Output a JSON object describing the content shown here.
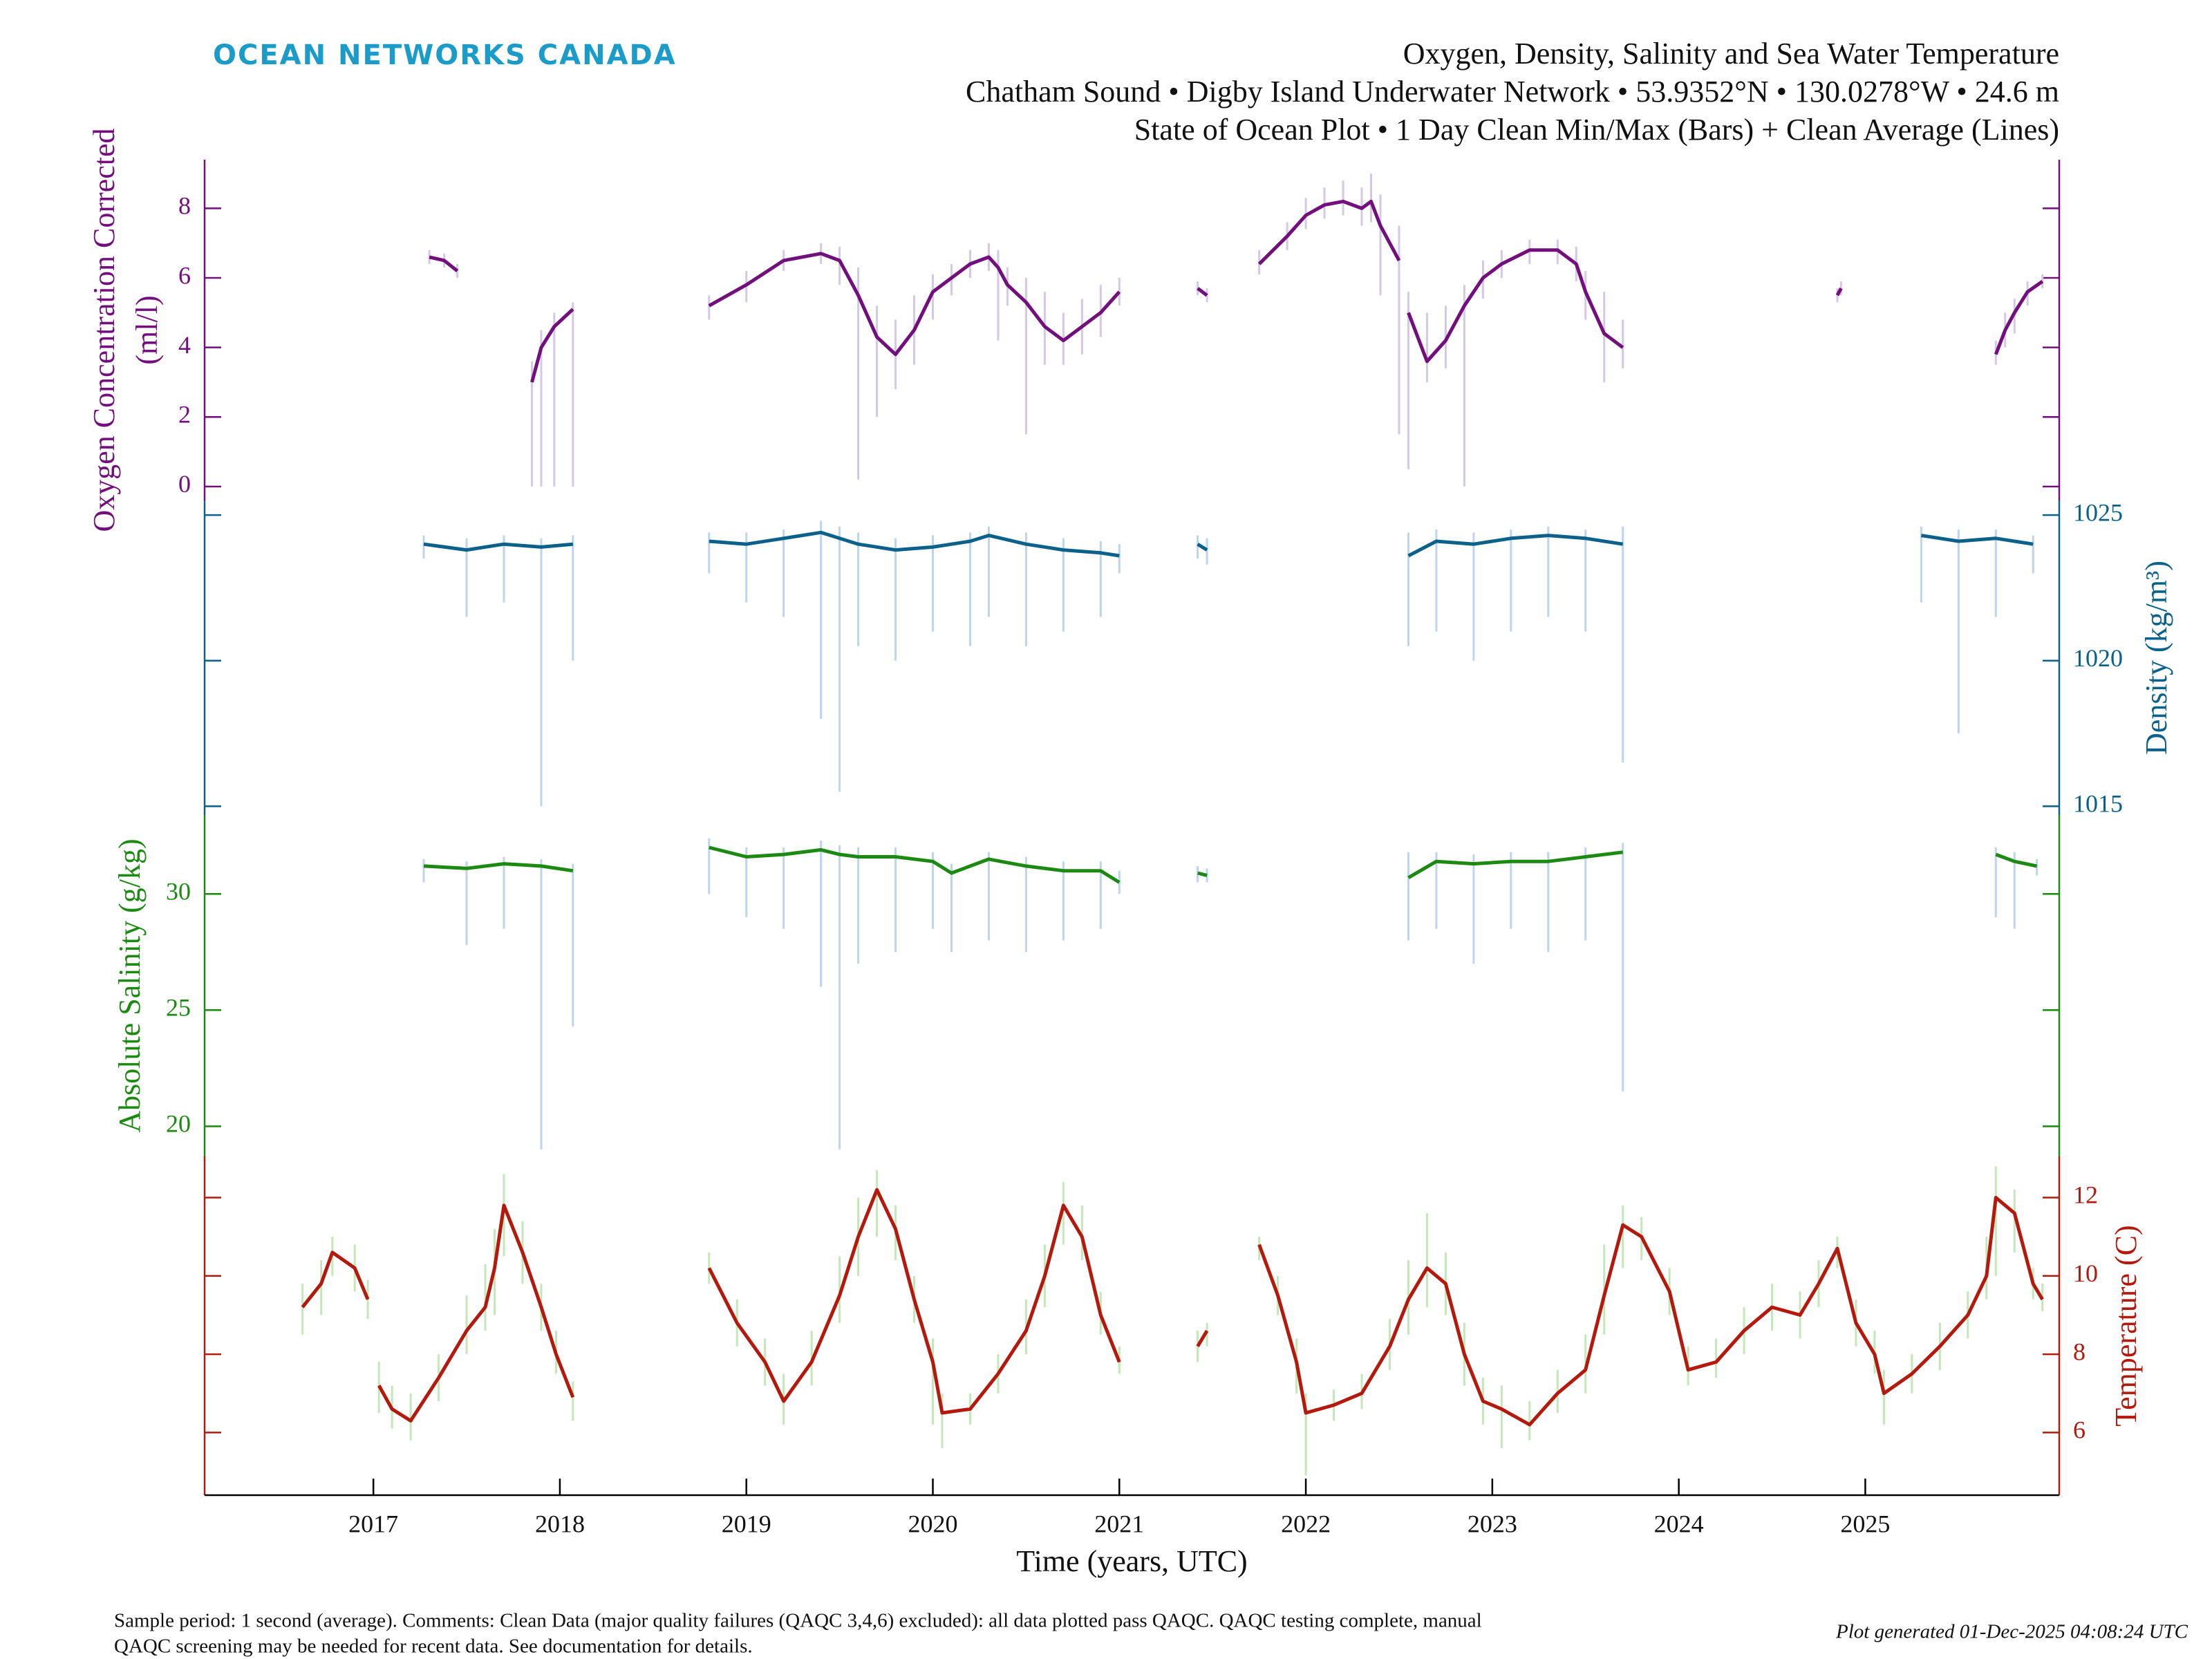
{
  "header": {
    "logo": "OCEAN NETWORKS CANADA",
    "title": "Oxygen, Density, Salinity and Sea Water Temperature",
    "subtitle": [
      "Chatham Sound • Digby Island Underwater Network • 53.9352°N • 130.0278°W • 24.6 m",
      "State of Ocean Plot • 1 Day Clean Min/Max (Bars) + Clean Average (Lines)"
    ]
  },
  "footer": {
    "note": [
      "Sample period: 1 second (average). Comments: Clean Data (major quality failures (QAQC 3,4,6) excluded): all data plotted pass QAQC. QAQC testing complete, manual",
      "QAQC screening may be needed for recent data. See documentation for details."
    ],
    "generated": "Plot generated 01-Dec-2025 04:08:24 UTC"
  },
  "chart_data": [
    {
      "type": "line",
      "ylabel": [
        "Oxygen Concentration Corrected",
        "(ml/l)"
      ],
      "axis_side": "left",
      "color": "#720f7c",
      "bar_color": "#d4c8e6",
      "xlim": [
        2016.095,
        2026.04
      ],
      "ylim": [
        -0.4,
        9.4
      ],
      "yticks": [
        0,
        2,
        4,
        6,
        8
      ],
      "x": [
        2017.3,
        2017.38,
        2017.45,
        null,
        2017.85,
        2017.9,
        2017.97,
        2018.07,
        null,
        2018.8,
        2019.0,
        2019.2,
        2019.4,
        2019.5,
        2019.6,
        2019.7,
        2019.8,
        2019.9,
        2020.0,
        2020.1,
        2020.2,
        2020.3,
        2020.35,
        2020.4,
        2020.5,
        2020.6,
        2020.7,
        2020.8,
        2020.9,
        2021.0,
        null,
        2021.42,
        2021.47,
        null,
        2021.75,
        2021.9,
        2022.0,
        2022.1,
        2022.2,
        2022.3,
        2022.35,
        2022.4,
        2022.5,
        null,
        2022.55,
        2022.65,
        2022.75,
        2022.85,
        2022.95,
        2023.05,
        2023.2,
        2023.35,
        2023.45,
        2023.5,
        2023.6,
        2023.7,
        null,
        2024.85,
        2024.87,
        null,
        2025.7,
        2025.75,
        2025.8,
        2025.87,
        2025.95
      ],
      "values": [
        6.6,
        6.5,
        6.2,
        null,
        3.0,
        4.0,
        4.6,
        5.1,
        null,
        5.2,
        5.8,
        6.5,
        6.7,
        6.5,
        5.5,
        4.3,
        3.8,
        4.5,
        5.6,
        6.0,
        6.4,
        6.6,
        6.3,
        5.8,
        5.3,
        4.6,
        4.2,
        4.6,
        5.0,
        5.6,
        null,
        5.7,
        5.5,
        null,
        6.4,
        7.2,
        7.8,
        8.1,
        8.2,
        8.0,
        8.2,
        7.5,
        6.5,
        null,
        5.0,
        3.6,
        4.2,
        5.2,
        6.0,
        6.4,
        6.8,
        6.8,
        6.4,
        5.6,
        4.4,
        4.0,
        null,
        5.5,
        5.7,
        null,
        3.8,
        4.5,
        5.0,
        5.6,
        5.9
      ],
      "low": [
        6.4,
        6.3,
        6.0,
        null,
        0,
        0,
        0,
        0,
        null,
        4.8,
        5.3,
        6.2,
        6.4,
        5.8,
        0.2,
        2.0,
        2.8,
        3.5,
        4.8,
        5.5,
        6.0,
        6.2,
        4.2,
        5.2,
        1.5,
        3.5,
        3.5,
        3.8,
        4.3,
        5.2,
        null,
        5.5,
        5.3,
        null,
        6.1,
        6.8,
        7.4,
        7.7,
        7.8,
        7.5,
        7.6,
        5.5,
        1.5,
        null,
        0.5,
        3.0,
        3.4,
        0.0,
        5.4,
        6.0,
        6.4,
        6.4,
        5.9,
        4.8,
        3.0,
        3.4,
        null,
        5.3,
        5.5,
        null,
        3.5,
        4.0,
        4.4,
        5.2,
        5.7
      ],
      "high": [
        6.8,
        6.7,
        6.4,
        null,
        3.6,
        4.5,
        5.0,
        5.3,
        null,
        5.5,
        6.2,
        6.8,
        7.0,
        6.9,
        6.3,
        5.2,
        4.8,
        5.5,
        6.1,
        6.4,
        6.8,
        7.0,
        6.8,
        6.3,
        6.0,
        5.6,
        5.0,
        5.4,
        5.8,
        6.0,
        null,
        5.9,
        5.7,
        null,
        6.8,
        7.6,
        8.3,
        8.6,
        8.8,
        8.6,
        9.0,
        8.4,
        7.5,
        null,
        5.6,
        5.0,
        5.2,
        5.8,
        6.5,
        6.8,
        7.1,
        7.1,
        6.9,
        6.2,
        5.6,
        4.8,
        null,
        5.7,
        5.9,
        null,
        4.2,
        5.0,
        5.4,
        5.9,
        6.1
      ]
    },
    {
      "type": "line",
      "ylabel": [
        "Density (kg/m³)"
      ],
      "axis_side": "right",
      "color": "#0b6189",
      "bar_color": "#bcd4ee",
      "xlim": [
        2016.095,
        2026.04
      ],
      "ylim": [
        1014.7,
        1025.5
      ],
      "yticks": [
        1015,
        1020,
        1025
      ],
      "x": [
        2017.27,
        2017.5,
        2017.7,
        2017.9,
        2018.07,
        null,
        2018.8,
        2019.0,
        2019.2,
        2019.4,
        2019.5,
        2019.6,
        2019.8,
        2020.0,
        2020.2,
        2020.3,
        2020.5,
        2020.7,
        2020.9,
        2021.0,
        null,
        2021.42,
        2021.47,
        null,
        2022.55,
        2022.7,
        2022.9,
        2023.1,
        2023.3,
        2023.5,
        2023.7,
        null,
        2025.3,
        2025.5,
        2025.7,
        2025.9
      ],
      "values": [
        1024.0,
        1023.8,
        1024.0,
        1023.9,
        1024.0,
        null,
        1024.1,
        1024.0,
        1024.2,
        1024.4,
        1024.2,
        1024.0,
        1023.8,
        1023.9,
        1024.1,
        1024.3,
        1024.0,
        1023.8,
        1023.7,
        1023.6,
        null,
        1024.0,
        1023.8,
        null,
        1023.6,
        1024.1,
        1024.0,
        1024.2,
        1024.3,
        1024.2,
        1024.0,
        null,
        1024.3,
        1024.1,
        1024.2,
        1024.0
      ],
      "low": [
        1023.5,
        1021.5,
        1022.0,
        1015.0,
        1020.0,
        null,
        1023.0,
        1022.0,
        1021.5,
        1018.0,
        1015.5,
        1020.5,
        1020.0,
        1021.0,
        1020.5,
        1021.5,
        1020.5,
        1021.0,
        1021.5,
        1023.0,
        null,
        1023.5,
        1023.3,
        null,
        1020.5,
        1021.0,
        1020.0,
        1021.0,
        1021.5,
        1021.0,
        1016.5,
        null,
        1022.0,
        1017.5,
        1021.5,
        1023.0
      ],
      "high": [
        1024.3,
        1024.2,
        1024.3,
        1024.2,
        1024.3,
        null,
        1024.4,
        1024.4,
        1024.5,
        1024.8,
        1024.6,
        1024.4,
        1024.2,
        1024.3,
        1024.4,
        1024.6,
        1024.4,
        1024.2,
        1024.1,
        1024.0,
        null,
        1024.3,
        1024.2,
        null,
        1024.4,
        1024.5,
        1024.4,
        1024.5,
        1024.6,
        1024.5,
        1024.6,
        null,
        1024.6,
        1024.5,
        1024.5,
        1024.3
      ]
    },
    {
      "type": "line",
      "ylabel": [
        "Absolute Salinity (g/kg)"
      ],
      "axis_side": "left",
      "color": "#1c8a12",
      "bar_color": "#bcd4ee",
      "xlim": [
        2016.095,
        2026.04
      ],
      "ylim": [
        18.7,
        33.4
      ],
      "yticks": [
        20,
        25,
        30
      ],
      "x": [
        2017.27,
        2017.5,
        2017.7,
        2017.9,
        2018.07,
        null,
        2018.8,
        2019.0,
        2019.2,
        2019.4,
        2019.5,
        2019.6,
        2019.8,
        2020.0,
        2020.1,
        2020.3,
        2020.5,
        2020.7,
        2020.9,
        2021.0,
        null,
        2021.42,
        2021.47,
        null,
        2022.55,
        2022.7,
        2022.9,
        2023.1,
        2023.3,
        2023.5,
        2023.7,
        null,
        2025.7,
        2025.8,
        2025.92
      ],
      "values": [
        31.2,
        31.1,
        31.3,
        31.2,
        31.0,
        null,
        32.0,
        31.6,
        31.7,
        31.9,
        31.7,
        31.6,
        31.6,
        31.4,
        30.9,
        31.5,
        31.2,
        31.0,
        31.0,
        30.5,
        null,
        30.9,
        30.8,
        null,
        30.7,
        31.4,
        31.3,
        31.4,
        31.4,
        31.6,
        31.8,
        null,
        31.7,
        31.4,
        31.2
      ],
      "low": [
        30.5,
        27.8,
        28.5,
        19.0,
        24.3,
        null,
        30.0,
        29.0,
        28.5,
        26.0,
        19.0,
        27.0,
        27.5,
        28.5,
        27.5,
        28.0,
        27.5,
        28.0,
        28.5,
        30.0,
        null,
        30.5,
        30.5,
        null,
        28.0,
        28.5,
        27.0,
        28.5,
        27.5,
        28.0,
        21.5,
        null,
        29.0,
        28.5,
        30.8
      ],
      "high": [
        31.5,
        31.4,
        31.6,
        31.5,
        31.3,
        null,
        32.4,
        32.0,
        32.0,
        32.3,
        32.1,
        32.0,
        32.0,
        31.8,
        31.3,
        31.8,
        31.6,
        31.4,
        31.4,
        31.0,
        null,
        31.2,
        31.1,
        null,
        31.8,
        31.8,
        31.7,
        31.8,
        31.8,
        32.0,
        32.2,
        null,
        32.0,
        31.8,
        31.5
      ]
    },
    {
      "type": "line",
      "ylabel": [
        "Temperature (C)"
      ],
      "axis_side": "right",
      "color": "#b3190c",
      "bar_color": "#c3e8b8",
      "xlim": [
        2016.095,
        2026.04
      ],
      "ylim": [
        4.4,
        13.05
      ],
      "yticks": [
        6,
        8,
        10,
        12
      ],
      "xlabel": "Time (years, UTC)",
      "xticks": [
        2017,
        2018,
        2019,
        2020,
        2021,
        2022,
        2023,
        2024,
        2025
      ],
      "x": [
        2016.62,
        2016.72,
        2016.78,
        2016.9,
        2016.97,
        null,
        2017.03,
        2017.1,
        2017.2,
        2017.35,
        2017.5,
        2017.6,
        2017.65,
        2017.7,
        2017.8,
        2017.9,
        2017.98,
        2018.07,
        null,
        2018.8,
        2018.95,
        2019.1,
        2019.2,
        2019.35,
        2019.5,
        2019.6,
        2019.7,
        2019.8,
        2019.9,
        2020.0,
        2020.05,
        2020.2,
        2020.35,
        2020.5,
        2020.6,
        2020.7,
        2020.8,
        2020.9,
        2021.0,
        null,
        2021.42,
        2021.47,
        null,
        2021.75,
        2021.85,
        2021.95,
        2022.0,
        2022.15,
        2022.3,
        2022.45,
        2022.55,
        2022.65,
        2022.75,
        2022.85,
        2022.95,
        2023.05,
        2023.2,
        2023.35,
        2023.5,
        2023.6,
        2023.7,
        2023.8,
        2023.95,
        2024.05,
        2024.2,
        2024.35,
        2024.5,
        2024.65,
        2024.75,
        2024.85,
        2024.95,
        2025.05,
        2025.1,
        2025.25,
        2025.4,
        2025.55,
        2025.65,
        2025.7,
        2025.8,
        2025.9,
        2025.95
      ],
      "values": [
        9.2,
        9.8,
        10.6,
        10.2,
        9.4,
        null,
        7.2,
        6.6,
        6.3,
        7.4,
        8.6,
        9.2,
        10.2,
        11.8,
        10.6,
        9.2,
        8.0,
        6.9,
        null,
        10.2,
        8.8,
        7.8,
        6.8,
        7.8,
        9.5,
        11.0,
        12.2,
        11.2,
        9.4,
        7.8,
        6.5,
        6.6,
        7.5,
        8.6,
        10.0,
        11.8,
        11.0,
        9.0,
        7.8,
        null,
        8.2,
        8.6,
        null,
        10.8,
        9.5,
        7.8,
        6.5,
        6.7,
        7.0,
        8.2,
        9.4,
        10.2,
        9.8,
        8.0,
        6.8,
        6.6,
        6.2,
        7.0,
        7.6,
        9.5,
        11.3,
        11.0,
        9.6,
        7.6,
        7.8,
        8.6,
        9.2,
        9.0,
        9.8,
        10.7,
        8.8,
        8.0,
        7.0,
        7.5,
        8.2,
        9.0,
        10.0,
        12.0,
        11.6,
        9.8,
        9.4
      ],
      "low": [
        8.5,
        9.0,
        10.0,
        9.6,
        8.9,
        null,
        6.5,
        6.1,
        5.8,
        6.8,
        8.0,
        8.6,
        9.0,
        10.5,
        9.8,
        8.6,
        7.5,
        6.3,
        null,
        9.8,
        8.2,
        7.2,
        6.2,
        7.2,
        8.8,
        10.0,
        11.0,
        10.4,
        8.8,
        6.2,
        5.6,
        6.2,
        7.0,
        8.0,
        9.2,
        10.8,
        10.4,
        8.5,
        7.5,
        null,
        7.8,
        8.2,
        null,
        10.4,
        9.0,
        7.0,
        4.9,
        6.3,
        6.6,
        7.6,
        8.5,
        9.2,
        9.0,
        7.2,
        6.2,
        5.6,
        5.8,
        6.5,
        7.0,
        8.5,
        10.2,
        10.4,
        9.0,
        7.2,
        7.4,
        8.0,
        8.6,
        8.4,
        9.2,
        10.2,
        8.2,
        7.5,
        6.2,
        7.0,
        7.6,
        8.4,
        9.4,
        10.0,
        10.6,
        9.4,
        9.1
      ],
      "high": [
        9.8,
        10.4,
        11.0,
        10.8,
        9.9,
        null,
        7.8,
        7.2,
        7.0,
        8.0,
        9.5,
        10.3,
        11.2,
        12.6,
        11.4,
        9.8,
        8.6,
        7.3,
        null,
        10.6,
        9.4,
        8.4,
        7.5,
        8.6,
        10.5,
        12.0,
        12.7,
        11.8,
        10.0,
        8.4,
        7.0,
        7.0,
        8.0,
        9.4,
        10.8,
        12.4,
        11.8,
        9.6,
        8.2,
        null,
        8.6,
        8.8,
        null,
        11.0,
        10.0,
        8.4,
        7.0,
        7.1,
        7.5,
        8.9,
        10.4,
        11.6,
        10.6,
        8.8,
        7.4,
        7.2,
        6.8,
        7.6,
        8.5,
        10.8,
        11.8,
        11.5,
        10.2,
        8.2,
        8.4,
        9.2,
        9.8,
        9.6,
        10.4,
        11.0,
        9.4,
        8.6,
        7.6,
        8.0,
        8.8,
        9.6,
        11.0,
        12.8,
        12.2,
        10.2,
        9.8
      ]
    }
  ]
}
